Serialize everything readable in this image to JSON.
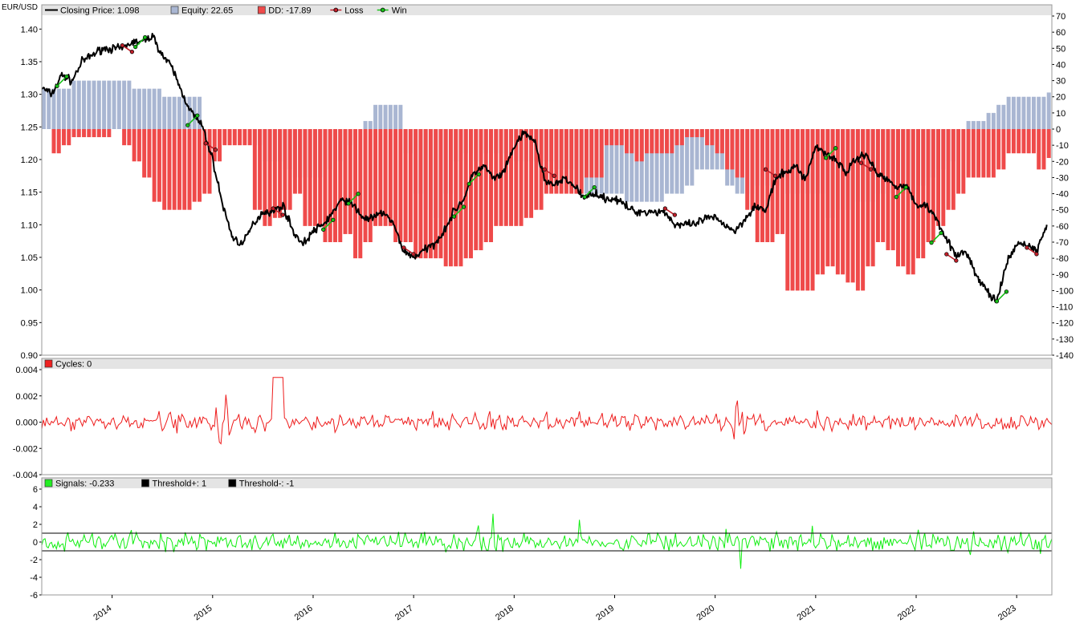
{
  "symbol": "EUR/USD",
  "chart_data": [
    {
      "type": "line",
      "panel": "price",
      "legend": [
        {
          "label": "Closing Price: 1.098",
          "color": "#000000",
          "kind": "line"
        },
        {
          "label": "Equity: 22.65",
          "color": "#a9b6d2",
          "kind": "box"
        },
        {
          "label": "DD: -17.89",
          "color": "#ef4a4a",
          "kind": "box"
        },
        {
          "label": "Loss",
          "color": "#c0202a",
          "kind": "marker"
        },
        {
          "label": "Win",
          "color": "#18c018",
          "kind": "marker"
        }
      ],
      "left_axis": {
        "ylim": [
          0.9,
          1.42
        ],
        "ticks": [
          0.9,
          0.95,
          1.0,
          1.05,
          1.1,
          1.15,
          1.2,
          1.25,
          1.3,
          1.35,
          1.4
        ],
        "tick_labels": [
          "0.90",
          "0.95",
          "1.00",
          "1.05",
          "1.10",
          "1.15",
          "1.20",
          "1.25",
          "1.30",
          "1.35",
          "1.40"
        ]
      },
      "right_axis": {
        "ylim": [
          -140,
          70
        ],
        "ticks": [
          -140,
          -130,
          -120,
          -110,
          -100,
          -90,
          -80,
          -70,
          -60,
          -50,
          -40,
          -30,
          -20,
          -10,
          0,
          10,
          20,
          30,
          40,
          50,
          60,
          70
        ],
        "tick_labels": [
          "-140",
          "-130",
          "-120",
          "-110",
          "-100",
          "-90",
          "-80",
          "-70",
          "-60",
          "-50",
          "-40",
          "-30",
          "-20",
          "-10",
          "0",
          "10",
          "20",
          "30",
          "40",
          "50",
          "60",
          "70"
        ]
      },
      "x": [
        2013.3,
        2013.4,
        2013.5,
        2013.6,
        2013.7,
        2013.8,
        2013.9,
        2014.0,
        2014.1,
        2014.2,
        2014.3,
        2014.4,
        2014.5,
        2014.6,
        2014.7,
        2014.8,
        2014.9,
        2015.0,
        2015.1,
        2015.2,
        2015.3,
        2015.4,
        2015.5,
        2015.6,
        2015.7,
        2015.8,
        2015.9,
        2016.0,
        2016.1,
        2016.2,
        2016.3,
        2016.4,
        2016.5,
        2016.6,
        2016.7,
        2016.8,
        2016.9,
        2017.0,
        2017.1,
        2017.2,
        2017.3,
        2017.4,
        2017.5,
        2017.6,
        2017.7,
        2017.8,
        2017.9,
        2018.0,
        2018.1,
        2018.2,
        2018.3,
        2018.4,
        2018.5,
        2018.6,
        2018.7,
        2018.8,
        2018.9,
        2019.0,
        2019.1,
        2019.2,
        2019.3,
        2019.4,
        2019.5,
        2019.6,
        2019.7,
        2019.8,
        2019.9,
        2020.0,
        2020.1,
        2020.2,
        2020.3,
        2020.4,
        2020.5,
        2020.6,
        2020.7,
        2020.8,
        2020.9,
        2021.0,
        2021.1,
        2021.2,
        2021.3,
        2021.4,
        2021.5,
        2021.6,
        2021.7,
        2021.8,
        2021.9,
        2022.0,
        2022.1,
        2022.2,
        2022.3,
        2022.4,
        2022.5,
        2022.6,
        2022.7,
        2022.8,
        2022.9,
        2023.0,
        2023.1,
        2023.2,
        2023.3
      ],
      "series": [
        {
          "name": "Closing Price",
          "color": "#000000",
          "values": [
            1.31,
            1.3,
            1.33,
            1.32,
            1.35,
            1.36,
            1.37,
            1.37,
            1.37,
            1.38,
            1.38,
            1.39,
            1.36,
            1.34,
            1.3,
            1.27,
            1.25,
            1.2,
            1.13,
            1.08,
            1.07,
            1.1,
            1.12,
            1.12,
            1.13,
            1.09,
            1.07,
            1.09,
            1.1,
            1.12,
            1.14,
            1.13,
            1.11,
            1.11,
            1.12,
            1.1,
            1.06,
            1.05,
            1.06,
            1.07,
            1.09,
            1.12,
            1.14,
            1.18,
            1.19,
            1.17,
            1.18,
            1.22,
            1.24,
            1.23,
            1.17,
            1.16,
            1.17,
            1.16,
            1.14,
            1.15,
            1.14,
            1.14,
            1.13,
            1.12,
            1.12,
            1.12,
            1.12,
            1.1,
            1.1,
            1.1,
            1.11,
            1.11,
            1.1,
            1.09,
            1.11,
            1.13,
            1.12,
            1.17,
            1.18,
            1.19,
            1.17,
            1.22,
            1.21,
            1.2,
            1.18,
            1.2,
            1.21,
            1.18,
            1.17,
            1.16,
            1.16,
            1.13,
            1.13,
            1.11,
            1.08,
            1.05,
            1.06,
            1.02,
            1.0,
            0.98,
            1.04,
            1.07,
            1.07,
            1.06,
            1.1
          ]
        }
      ],
      "equity": [
        25,
        25,
        25,
        30,
        30,
        30,
        30,
        30,
        30,
        25,
        25,
        25,
        20,
        20,
        20,
        20,
        0,
        0,
        0,
        0,
        0,
        -10,
        -20,
        -20,
        -25,
        -30,
        -30,
        -30,
        -25,
        -20,
        -10,
        0,
        5,
        15,
        15,
        15,
        -15,
        -40,
        -50,
        -55,
        -40,
        -20,
        -15,
        -20,
        -15,
        -15,
        -15,
        -20,
        -20,
        -20,
        -20,
        -25,
        -25,
        -40,
        -40,
        -40,
        -40,
        -40,
        -45,
        -45,
        -45,
        -45,
        -40,
        -40,
        -35,
        -25,
        -25,
        -25,
        -35,
        -40,
        -40,
        -35,
        -35,
        -35,
        -40,
        -40,
        -40,
        -40,
        -55,
        -50,
        -50,
        -45,
        -45,
        -40,
        -40,
        -40,
        -40,
        -35,
        -30,
        -25,
        -20,
        0,
        5,
        5,
        10,
        15,
        20,
        20,
        20,
        20,
        22.65
      ],
      "drawdown": [
        0,
        -15,
        -10,
        -5,
        -5,
        -5,
        -5,
        0,
        -10,
        -20,
        -30,
        -45,
        -50,
        -50,
        -50,
        -45,
        -40,
        -20,
        -10,
        -10,
        -10,
        -50,
        -60,
        -55,
        -50,
        -40,
        -60,
        -60,
        -70,
        -70,
        -65,
        -80,
        -70,
        -60,
        -60,
        -70,
        -70,
        -80,
        -80,
        -80,
        -85,
        -85,
        -80,
        -75,
        -70,
        -60,
        -60,
        -60,
        -55,
        -50,
        -40,
        -40,
        -40,
        -40,
        -30,
        -30,
        -10,
        -10,
        -15,
        -20,
        -15,
        -15,
        -15,
        -10,
        -5,
        -5,
        -10,
        -15,
        -25,
        -30,
        -50,
        -70,
        -70,
        -65,
        -100,
        -100,
        -100,
        -90,
        -85,
        -90,
        -95,
        -100,
        -85,
        -70,
        -75,
        -85,
        -90,
        -80,
        -70,
        -60,
        -50,
        -40,
        -30,
        -30,
        -30,
        -25,
        -15,
        -15,
        -15,
        -25,
        -17.89
      ],
      "trade_markers": [
        {
          "type": "Win",
          "x": 2013.5,
          "y": 1.32
        },
        {
          "type": "Loss",
          "x": 2014.15,
          "y": 1.37
        },
        {
          "type": "Win",
          "x": 2014.28,
          "y": 1.38
        },
        {
          "type": "Win",
          "x": 2014.8,
          "y": 1.26
        },
        {
          "type": "Loss",
          "x": 2014.98,
          "y": 1.22
        },
        {
          "type": "Loss",
          "x": 2015.65,
          "y": 1.12
        },
        {
          "type": "Win",
          "x": 2016.15,
          "y": 1.1
        },
        {
          "type": "Win",
          "x": 2016.4,
          "y": 1.14
        },
        {
          "type": "Loss",
          "x": 2016.95,
          "y": 1.06
        },
        {
          "type": "Win",
          "x": 2017.45,
          "y": 1.12
        },
        {
          "type": "Win",
          "x": 2017.6,
          "y": 1.17
        },
        {
          "type": "Loss",
          "x": 2018.35,
          "y": 1.18
        },
        {
          "type": "Win",
          "x": 2018.75,
          "y": 1.15
        },
        {
          "type": "Loss",
          "x": 2019.55,
          "y": 1.12
        },
        {
          "type": "Loss",
          "x": 2020.55,
          "y": 1.18
        },
        {
          "type": "Win",
          "x": 2021.15,
          "y": 1.21
        },
        {
          "type": "Loss",
          "x": 2021.5,
          "y": 1.19
        },
        {
          "type": "Win",
          "x": 2021.85,
          "y": 1.15
        },
        {
          "type": "Win",
          "x": 2022.2,
          "y": 1.08
        },
        {
          "type": "Loss",
          "x": 2022.35,
          "y": 1.05
        },
        {
          "type": "Win",
          "x": 2022.85,
          "y": 0.99
        },
        {
          "type": "Loss",
          "x": 2023.15,
          "y": 1.06
        }
      ]
    },
    {
      "type": "line",
      "panel": "cycles",
      "legend": [
        {
          "label": "Cycles: 0",
          "color": "#ee2020",
          "kind": "box"
        }
      ],
      "left_axis": {
        "ylim": [
          -0.004,
          0.004
        ],
        "ticks": [
          -0.004,
          -0.002,
          0.0,
          0.002,
          0.004
        ],
        "tick_labels": [
          "-0.004",
          "-0.002",
          "0.000",
          "0.002",
          "0.004"
        ]
      },
      "series": [
        {
          "name": "Cycles",
          "color": "#ee1c1c",
          "amplitude": 0.0008
        }
      ]
    },
    {
      "type": "line",
      "panel": "signals",
      "legend": [
        {
          "label": "Signals: -0.233",
          "color": "#22ee22",
          "kind": "box"
        },
        {
          "label": "Threshold+: 1",
          "color": "#000000",
          "kind": "box"
        },
        {
          "label": "Threshold-: -1",
          "color": "#000000",
          "kind": "box"
        }
      ],
      "left_axis": {
        "ylim": [
          -6,
          6
        ],
        "ticks": [
          -6,
          -4,
          -2,
          0,
          2,
          4,
          6
        ],
        "tick_labels": [
          "-6",
          "-4",
          "-2",
          "0",
          "2",
          "4",
          "6"
        ]
      },
      "thresholds": [
        1,
        -1
      ],
      "series": [
        {
          "name": "Signals",
          "color": "#11ee11",
          "amplitude": 1.3
        }
      ]
    }
  ],
  "x_axis": {
    "xlim": [
      2013.3,
      2023.35
    ],
    "ticks": [
      2014,
      2015,
      2016,
      2017,
      2018,
      2019,
      2020,
      2021,
      2022,
      2023
    ],
    "tick_labels": [
      "2014",
      "2015",
      "2016",
      "2017",
      "2018",
      "2019",
      "2020",
      "2021",
      "2022",
      "2023"
    ]
  }
}
